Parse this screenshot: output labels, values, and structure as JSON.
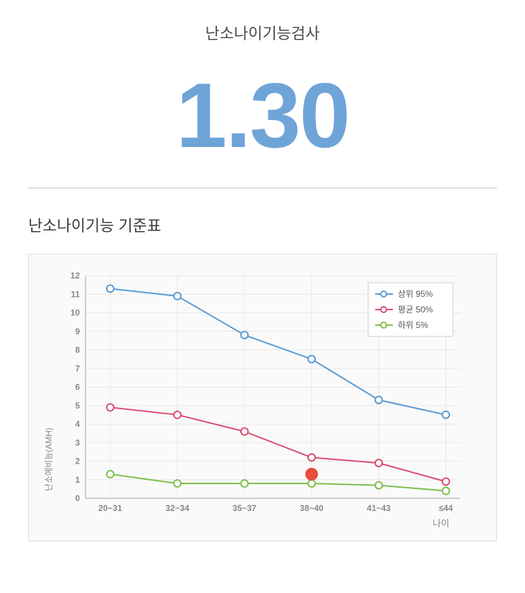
{
  "header": {
    "title": "난소나이기능검사",
    "value": "1.30",
    "value_color": "#6fa4d8"
  },
  "subtitle": "난소나이기능 기준표",
  "chart": {
    "type": "line",
    "background_color": "#fafafa",
    "border_color": "#dcdcdc",
    "plot_bg": "#fafafa",
    "grid_color": "#e8e8e8",
    "axis_color": "#bfbfbf",
    "ylabel": "난소예비능(AMH)",
    "xlabel": "나이",
    "label_fontsize": 12,
    "tick_fontsize": 12,
    "ylim": [
      0,
      12
    ],
    "ytick_step": 1,
    "categories": [
      "20~31",
      "32~34",
      "35~37",
      "38~40",
      "41~43",
      "≤44"
    ],
    "series": [
      {
        "name": "상위 95%",
        "color": "#5a9bd4",
        "marker": "circle-open",
        "marker_size": 5,
        "line_width": 2,
        "values": [
          11.3,
          10.9,
          8.8,
          7.5,
          5.3,
          4.5
        ]
      },
      {
        "name": "평균 50%",
        "color": "#d94f70",
        "marker": "circle-open",
        "marker_size": 5,
        "line_width": 2,
        "values": [
          4.9,
          4.5,
          3.6,
          2.2,
          1.9,
          0.9
        ]
      },
      {
        "name": "하위 5%",
        "color": "#7fbf4d",
        "marker": "circle-open",
        "marker_size": 5,
        "line_width": 2,
        "values": [
          1.3,
          0.8,
          0.8,
          0.8,
          0.7,
          0.4
        ]
      }
    ],
    "highlight_point": {
      "category_index": 3,
      "value": 1.3,
      "color": "#e74c3c",
      "radius": 9
    },
    "legend": {
      "position": "top-right",
      "bg": "#ffffff",
      "border": "#cccccc"
    }
  }
}
